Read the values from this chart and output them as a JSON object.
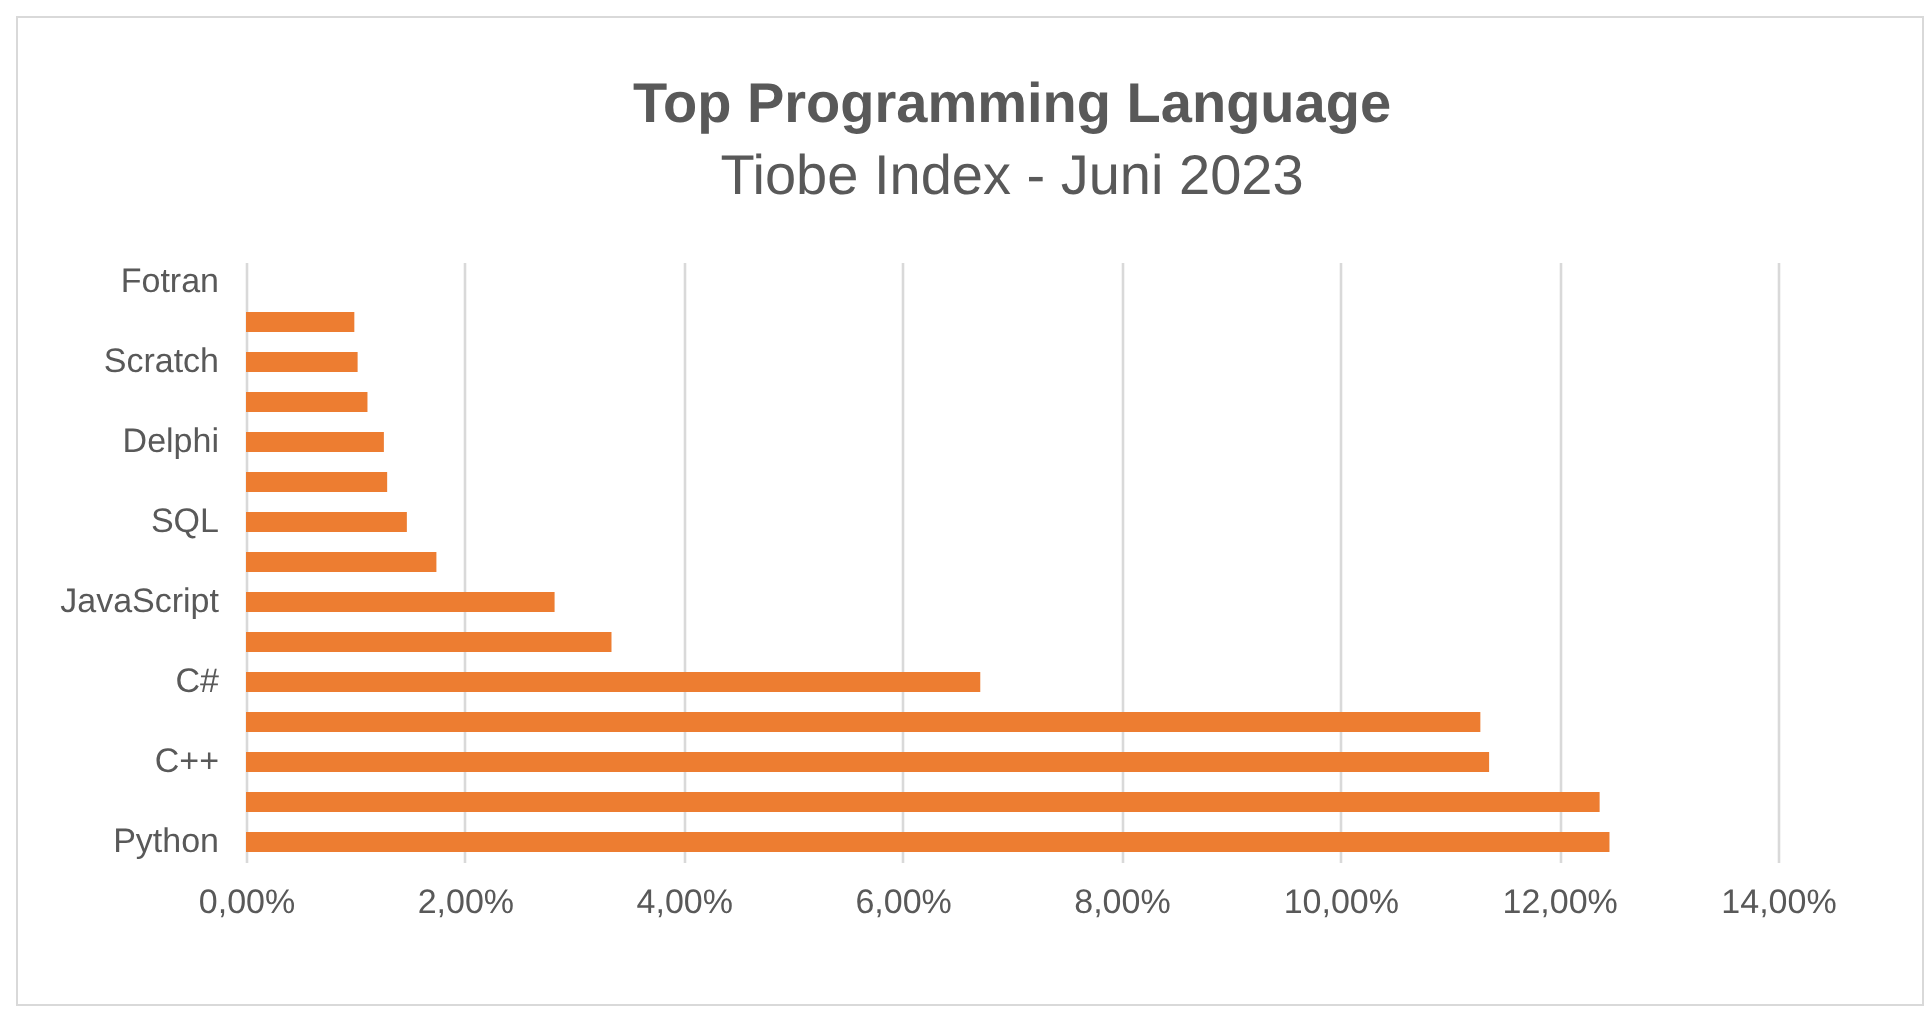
{
  "chart_data": {
    "type": "bar",
    "orientation": "horizontal",
    "title": "Top Programming Language",
    "subtitle": "Tiobe Index - Juni 2023",
    "categories": [
      "Fotran",
      null,
      "Scratch",
      null,
      "Delphi",
      null,
      "SQL",
      null,
      "JavaScript",
      null,
      "C#",
      null,
      "C++",
      null,
      "Python"
    ],
    "values": [
      null,
      0.99,
      1.02,
      1.11,
      1.26,
      1.29,
      1.47,
      1.74,
      2.82,
      3.34,
      6.71,
      11.28,
      11.36,
      12.37,
      12.46
    ],
    "color": "#ed7d31",
    "xlim": [
      0,
      14
    ],
    "xticks": [
      {
        "value": 0,
        "label": "0,00%"
      },
      {
        "value": 2,
        "label": "2,00%"
      },
      {
        "value": 4,
        "label": "4,00%"
      },
      {
        "value": 6,
        "label": "6,00%"
      },
      {
        "value": 8,
        "label": "8,00%"
      },
      {
        "value": 10,
        "label": "10,00%"
      },
      {
        "value": 12,
        "label": "12,00%"
      },
      {
        "value": 14,
        "label": "14,00%"
      }
    ],
    "grid": "x"
  }
}
